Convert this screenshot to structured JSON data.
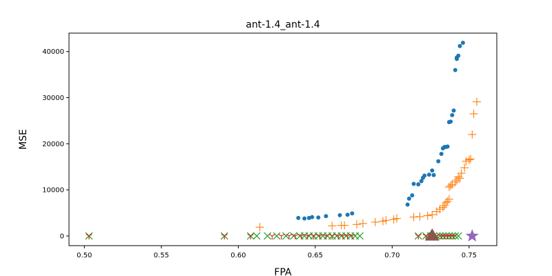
{
  "chart_data": {
    "type": "scatter",
    "title": "ant-1.4_ant-1.4",
    "xlabel": "FPA",
    "ylabel": "MSE",
    "xlim": [
      0.49,
      0.768
    ],
    "ylim": [
      -2100,
      44000
    ],
    "xticks": [
      "0.50",
      "0.55",
      "0.60",
      "0.65",
      "0.70",
      "0.75"
    ],
    "yticks": [
      "0",
      "10000",
      "20000",
      "30000",
      "40000"
    ],
    "grid": false,
    "series": [
      {
        "marker": "circle",
        "color": "#1f77b4",
        "x": [
          0.639,
          0.643,
          0.646,
          0.648,
          0.652,
          0.657,
          0.666,
          0.671,
          0.674,
          0.71,
          0.711,
          0.713,
          0.714,
          0.717,
          0.719,
          0.72,
          0.721,
          0.724,
          0.726,
          0.727,
          0.73,
          0.732,
          0.733,
          0.734,
          0.735,
          0.736,
          0.737,
          0.738,
          0.739,
          0.74,
          0.741,
          0.742,
          0.742,
          0.743,
          0.744,
          0.746
        ],
        "y": [
          3900,
          3800,
          3900,
          4100,
          4000,
          4300,
          4500,
          4600,
          4900,
          6800,
          8100,
          8800,
          11300,
          11200,
          11900,
          12600,
          13100,
          13300,
          14200,
          13200,
          16200,
          17800,
          19000,
          19300,
          19300,
          19400,
          24700,
          24800,
          26200,
          27200,
          36000,
          38400,
          38700,
          39100,
          41200,
          41900
        ]
      },
      {
        "marker": "plus",
        "color": "#ff7f0e",
        "x": [
          0.614,
          0.661,
          0.667,
          0.669,
          0.677,
          0.681,
          0.689,
          0.694,
          0.696,
          0.701,
          0.703,
          0.714,
          0.718,
          0.723,
          0.726,
          0.729,
          0.731,
          0.733,
          0.734,
          0.735,
          0.736,
          0.737,
          0.737,
          0.738,
          0.739,
          0.741,
          0.742,
          0.743,
          0.744,
          0.745,
          0.747,
          0.748,
          0.75,
          0.751,
          0.752,
          0.753,
          0.755
        ],
        "y": [
          1900,
          2200,
          2300,
          2300,
          2500,
          2700,
          3000,
          3200,
          3400,
          3600,
          3800,
          4100,
          4200,
          4400,
          4600,
          5300,
          5800,
          6200,
          6600,
          7200,
          7500,
          8000,
          10600,
          10900,
          11200,
          11700,
          12100,
          12800,
          12500,
          13600,
          14800,
          16200,
          16500,
          16700,
          22000,
          26500,
          29100
        ]
      },
      {
        "marker": "x",
        "color": "#2ca02c",
        "x": [
          0.503,
          0.591,
          0.608,
          0.612,
          0.619,
          0.625,
          0.631,
          0.636,
          0.64,
          0.643,
          0.646,
          0.649,
          0.652,
          0.655,
          0.658,
          0.661,
          0.664,
          0.667,
          0.67,
          0.673,
          0.676,
          0.679,
          0.717,
          0.722,
          0.725,
          0.727,
          0.729,
          0.731,
          0.733,
          0.735,
          0.737,
          0.739,
          0.741,
          0.743
        ],
        "y": [
          0,
          0,
          0,
          0,
          0,
          0,
          0,
          0,
          0,
          0,
          0,
          0,
          0,
          0,
          0,
          0,
          0,
          0,
          0,
          0,
          0,
          0,
          0,
          0,
          0,
          0,
          0,
          0,
          0,
          0,
          0,
          0,
          0,
          0
        ]
      },
      {
        "marker": "tri_down",
        "color": "#d62728",
        "x": [
          0.503,
          0.591,
          0.608,
          0.622,
          0.628,
          0.633,
          0.637,
          0.641,
          0.645,
          0.649,
          0.653,
          0.657,
          0.661,
          0.665,
          0.668,
          0.671,
          0.674,
          0.717,
          0.722,
          0.726,
          0.729,
          0.732,
          0.734,
          0.736,
          0.738,
          0.74
        ],
        "y": [
          0,
          0,
          0,
          0,
          0,
          0,
          0,
          0,
          0,
          0,
          0,
          0,
          0,
          0,
          0,
          0,
          0,
          0,
          0,
          0,
          0,
          0,
          0,
          0,
          0,
          0
        ]
      },
      {
        "marker": "star",
        "color": "#9467bd",
        "x": [
          0.752
        ],
        "y": [
          0
        ]
      },
      {
        "marker": "triangle_up",
        "color": "#8c564b",
        "x": [
          0.726
        ],
        "y": [
          0
        ]
      }
    ]
  }
}
